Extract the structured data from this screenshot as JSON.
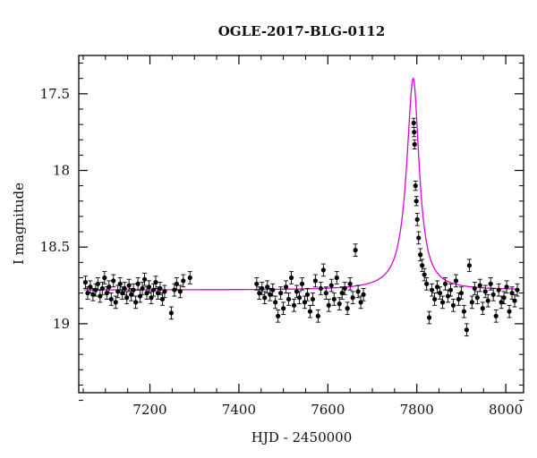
{
  "chart_data": {
    "type": "scatter",
    "title": "OGLE-2017-BLG-0112",
    "xlabel": "HJD - 2450000",
    "ylabel": "I magnitude",
    "xlim": [
      7040,
      8040
    ],
    "ylim": [
      19.45,
      17.25
    ],
    "y_inverted": true,
    "x_ticks": [
      7200,
      7400,
      7600,
      7800,
      8000
    ],
    "x_tick_labels": [
      "7200",
      "7400",
      "7600",
      "7800",
      "8000"
    ],
    "y_ticks": [
      17.5,
      18,
      18.5,
      19
    ],
    "y_tick_labels": [
      "17.5",
      "18",
      "18.5",
      "19"
    ],
    "grid": false,
    "legend": "none",
    "colors": {
      "points": "#000000",
      "model": "#e000e0",
      "axes": "#000000"
    },
    "model": {
      "baseline": 18.78,
      "peak_mag": 17.4,
      "t0": 7792,
      "rise_width": 18,
      "decay_width": 16
    },
    "series": [
      {
        "values": [
          {
            "x": 7055,
            "y": 18.73,
            "e": 0.04
          },
          {
            "x": 7060,
            "y": 18.8,
            "e": 0.04
          },
          {
            "x": 7066,
            "y": 18.76,
            "e": 0.04
          },
          {
            "x": 7072,
            "y": 18.81,
            "e": 0.04
          },
          {
            "x": 7078,
            "y": 18.78,
            "e": 0.04
          },
          {
            "x": 7083,
            "y": 18.74,
            "e": 0.04
          },
          {
            "x": 7088,
            "y": 18.82,
            "e": 0.04
          },
          {
            "x": 7093,
            "y": 18.77,
            "e": 0.04
          },
          {
            "x": 7098,
            "y": 18.7,
            "e": 0.04
          },
          {
            "x": 7103,
            "y": 18.8,
            "e": 0.04
          },
          {
            "x": 7108,
            "y": 18.76,
            "e": 0.04
          },
          {
            "x": 7113,
            "y": 18.84,
            "e": 0.04
          },
          {
            "x": 7118,
            "y": 18.72,
            "e": 0.04
          },
          {
            "x": 7123,
            "y": 18.86,
            "e": 0.04
          },
          {
            "x": 7128,
            "y": 18.79,
            "e": 0.04
          },
          {
            "x": 7133,
            "y": 18.74,
            "e": 0.04
          },
          {
            "x": 7138,
            "y": 18.8,
            "e": 0.04
          },
          {
            "x": 7143,
            "y": 18.77,
            "e": 0.04
          },
          {
            "x": 7148,
            "y": 18.83,
            "e": 0.04
          },
          {
            "x": 7153,
            "y": 18.75,
            "e": 0.04
          },
          {
            "x": 7158,
            "y": 18.81,
            "e": 0.04
          },
          {
            "x": 7163,
            "y": 18.78,
            "e": 0.04
          },
          {
            "x": 7168,
            "y": 18.86,
            "e": 0.04
          },
          {
            "x": 7173,
            "y": 18.74,
            "e": 0.04
          },
          {
            "x": 7178,
            "y": 18.82,
            "e": 0.04
          },
          {
            "x": 7183,
            "y": 18.77,
            "e": 0.04
          },
          {
            "x": 7188,
            "y": 18.71,
            "e": 0.04
          },
          {
            "x": 7193,
            "y": 18.8,
            "e": 0.04
          },
          {
            "x": 7198,
            "y": 18.76,
            "e": 0.04
          },
          {
            "x": 7203,
            "y": 18.83,
            "e": 0.04
          },
          {
            "x": 7208,
            "y": 18.78,
            "e": 0.04
          },
          {
            "x": 7213,
            "y": 18.73,
            "e": 0.04
          },
          {
            "x": 7218,
            "y": 18.8,
            "e": 0.04
          },
          {
            "x": 7223,
            "y": 18.77,
            "e": 0.04
          },
          {
            "x": 7228,
            "y": 18.84,
            "e": 0.04
          },
          {
            "x": 7233,
            "y": 18.79,
            "e": 0.04
          },
          {
            "x": 7248,
            "y": 18.93,
            "e": 0.04
          },
          {
            "x": 7255,
            "y": 18.78,
            "e": 0.04
          },
          {
            "x": 7260,
            "y": 18.74,
            "e": 0.04
          },
          {
            "x": 7268,
            "y": 18.79,
            "e": 0.04
          },
          {
            "x": 7275,
            "y": 18.72,
            "e": 0.04
          },
          {
            "x": 7290,
            "y": 18.7,
            "e": 0.04
          },
          {
            "x": 7440,
            "y": 18.74,
            "e": 0.04
          },
          {
            "x": 7446,
            "y": 18.8,
            "e": 0.04
          },
          {
            "x": 7452,
            "y": 18.77,
            "e": 0.04
          },
          {
            "x": 7458,
            "y": 18.83,
            "e": 0.04
          },
          {
            "x": 7464,
            "y": 18.76,
            "e": 0.04
          },
          {
            "x": 7470,
            "y": 18.81,
            "e": 0.04
          },
          {
            "x": 7476,
            "y": 18.78,
            "e": 0.04
          },
          {
            "x": 7482,
            "y": 18.86,
            "e": 0.04
          },
          {
            "x": 7488,
            "y": 18.95,
            "e": 0.04
          },
          {
            "x": 7494,
            "y": 18.8,
            "e": 0.04
          },
          {
            "x": 7500,
            "y": 18.9,
            "e": 0.04
          },
          {
            "x": 7506,
            "y": 18.76,
            "e": 0.04
          },
          {
            "x": 7512,
            "y": 18.84,
            "e": 0.04
          },
          {
            "x": 7518,
            "y": 18.7,
            "e": 0.04
          },
          {
            "x": 7524,
            "y": 18.88,
            "e": 0.04
          },
          {
            "x": 7530,
            "y": 18.79,
            "e": 0.04
          },
          {
            "x": 7536,
            "y": 18.83,
            "e": 0.04
          },
          {
            "x": 7542,
            "y": 18.74,
            "e": 0.04
          },
          {
            "x": 7548,
            "y": 18.86,
            "e": 0.04
          },
          {
            "x": 7554,
            "y": 18.81,
            "e": 0.04
          },
          {
            "x": 7560,
            "y": 18.92,
            "e": 0.04
          },
          {
            "x": 7566,
            "y": 18.84,
            "e": 0.04
          },
          {
            "x": 7572,
            "y": 18.72,
            "e": 0.04
          },
          {
            "x": 7578,
            "y": 18.95,
            "e": 0.04
          },
          {
            "x": 7584,
            "y": 18.77,
            "e": 0.04
          },
          {
            "x": 7590,
            "y": 18.65,
            "e": 0.04
          },
          {
            "x": 7596,
            "y": 18.8,
            "e": 0.04
          },
          {
            "x": 7602,
            "y": 18.88,
            "e": 0.04
          },
          {
            "x": 7608,
            "y": 18.75,
            "e": 0.04
          },
          {
            "x": 7614,
            "y": 18.84,
            "e": 0.04
          },
          {
            "x": 7620,
            "y": 18.7,
            "e": 0.04
          },
          {
            "x": 7626,
            "y": 18.87,
            "e": 0.04
          },
          {
            "x": 7632,
            "y": 18.8,
            "e": 0.04
          },
          {
            "x": 7638,
            "y": 18.77,
            "e": 0.04
          },
          {
            "x": 7644,
            "y": 18.9,
            "e": 0.04
          },
          {
            "x": 7650,
            "y": 18.74,
            "e": 0.04
          },
          {
            "x": 7656,
            "y": 18.83,
            "e": 0.04
          },
          {
            "x": 7662,
            "y": 18.52,
            "e": 0.04
          },
          {
            "x": 7668,
            "y": 18.79,
            "e": 0.04
          },
          {
            "x": 7674,
            "y": 18.86,
            "e": 0.04
          },
          {
            "x": 7680,
            "y": 18.81,
            "e": 0.04
          },
          {
            "x": 7793,
            "y": 17.69,
            "e": 0.03
          },
          {
            "x": 7794,
            "y": 17.75,
            "e": 0.03
          },
          {
            "x": 7795,
            "y": 17.83,
            "e": 0.03
          },
          {
            "x": 7797,
            "y": 18.1,
            "e": 0.03
          },
          {
            "x": 7799,
            "y": 18.2,
            "e": 0.03
          },
          {
            "x": 7801,
            "y": 18.32,
            "e": 0.04
          },
          {
            "x": 7804,
            "y": 18.44,
            "e": 0.04
          },
          {
            "x": 7808,
            "y": 18.55,
            "e": 0.04
          },
          {
            "x": 7812,
            "y": 18.62,
            "e": 0.04
          },
          {
            "x": 7817,
            "y": 18.68,
            "e": 0.04
          },
          {
            "x": 7822,
            "y": 18.74,
            "e": 0.04
          },
          {
            "x": 7828,
            "y": 18.96,
            "e": 0.04
          },
          {
            "x": 7834,
            "y": 18.78,
            "e": 0.04
          },
          {
            "x": 7840,
            "y": 18.84,
            "e": 0.04
          },
          {
            "x": 7846,
            "y": 18.76,
            "e": 0.04
          },
          {
            "x": 7852,
            "y": 18.8,
            "e": 0.04
          },
          {
            "x": 7858,
            "y": 18.86,
            "e": 0.04
          },
          {
            "x": 7864,
            "y": 18.74,
            "e": 0.04
          },
          {
            "x": 7870,
            "y": 18.82,
            "e": 0.04
          },
          {
            "x": 7876,
            "y": 18.78,
            "e": 0.04
          },
          {
            "x": 7882,
            "y": 18.88,
            "e": 0.04
          },
          {
            "x": 7888,
            "y": 18.72,
            "e": 0.04
          },
          {
            "x": 7894,
            "y": 18.84,
            "e": 0.04
          },
          {
            "x": 7900,
            "y": 18.8,
            "e": 0.04
          },
          {
            "x": 7906,
            "y": 18.92,
            "e": 0.04
          },
          {
            "x": 7912,
            "y": 19.04,
            "e": 0.04
          },
          {
            "x": 7918,
            "y": 18.62,
            "e": 0.04
          },
          {
            "x": 7924,
            "y": 18.86,
            "e": 0.04
          },
          {
            "x": 7930,
            "y": 18.77,
            "e": 0.04
          },
          {
            "x": 7936,
            "y": 18.83,
            "e": 0.04
          },
          {
            "x": 7942,
            "y": 18.75,
            "e": 0.04
          },
          {
            "x": 7948,
            "y": 18.9,
            "e": 0.04
          },
          {
            "x": 7954,
            "y": 18.79,
            "e": 0.04
          },
          {
            "x": 7960,
            "y": 18.85,
            "e": 0.04
          },
          {
            "x": 7966,
            "y": 18.74,
            "e": 0.04
          },
          {
            "x": 7972,
            "y": 18.81,
            "e": 0.04
          },
          {
            "x": 7978,
            "y": 18.95,
            "e": 0.04
          },
          {
            "x": 7984,
            "y": 18.78,
            "e": 0.04
          },
          {
            "x": 7990,
            "y": 18.86,
            "e": 0.04
          },
          {
            "x": 7996,
            "y": 18.83,
            "e": 0.04
          },
          {
            "x": 8002,
            "y": 18.76,
            "e": 0.04
          },
          {
            "x": 8008,
            "y": 18.92,
            "e": 0.04
          },
          {
            "x": 8014,
            "y": 18.8,
            "e": 0.04
          },
          {
            "x": 8020,
            "y": 18.85,
            "e": 0.04
          },
          {
            "x": 8026,
            "y": 18.78,
            "e": 0.04
          }
        ]
      }
    ]
  }
}
